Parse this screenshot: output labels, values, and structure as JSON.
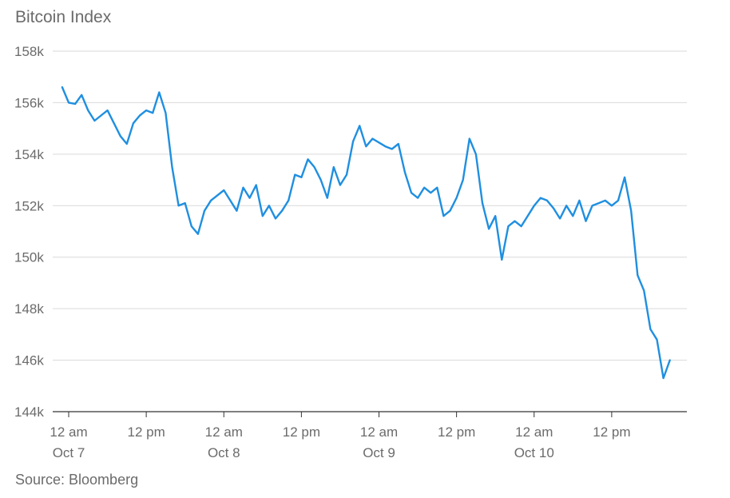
{
  "title": "Bitcoin Index",
  "source": "Source: Bloomberg",
  "colors": {
    "line": "#1f8fe0",
    "grid": "#d9d9d9",
    "axis": "#333333",
    "text": "#6b6b6b"
  },
  "chart_data": {
    "type": "line",
    "title": "Bitcoin Index",
    "xlabel": "",
    "ylabel": "",
    "ylim": [
      144000,
      158000
    ],
    "y_ticks": [
      {
        "value": 144000,
        "label": "144k"
      },
      {
        "value": 146000,
        "label": "146k"
      },
      {
        "value": 148000,
        "label": "148k"
      },
      {
        "value": 150000,
        "label": "150k"
      },
      {
        "value": 152000,
        "label": "152k"
      },
      {
        "value": 154000,
        "label": "154k"
      },
      {
        "value": 156000,
        "label": "156k"
      },
      {
        "value": 158000,
        "label": "158k"
      }
    ],
    "xlim": [
      "2025-10-07 00:00",
      "2025-10-11 00:00"
    ],
    "x_ticks": [
      {
        "value": "2025-10-07 00:00",
        "label": "12 am",
        "sublabel": "Oct 7"
      },
      {
        "value": "2025-10-07 12:00",
        "label": "12 pm",
        "sublabel": ""
      },
      {
        "value": "2025-10-08 00:00",
        "label": "12 am",
        "sublabel": "Oct 8"
      },
      {
        "value": "2025-10-08 12:00",
        "label": "12 pm",
        "sublabel": ""
      },
      {
        "value": "2025-10-09 00:00",
        "label": "12 am",
        "sublabel": "Oct 9"
      },
      {
        "value": "2025-10-09 12:00",
        "label": "12 pm",
        "sublabel": ""
      },
      {
        "value": "2025-10-10 00:00",
        "label": "12 am",
        "sublabel": "Oct 10"
      },
      {
        "value": "2025-10-10 12:00",
        "label": "12 pm",
        "sublabel": ""
      }
    ],
    "grid": true,
    "series": [
      {
        "values": [
          [
            "2025-10-06 23:00",
            156600
          ],
          [
            "2025-10-07 00:00",
            156000
          ],
          [
            "2025-10-07 01:00",
            155950
          ],
          [
            "2025-10-07 02:00",
            156300
          ],
          [
            "2025-10-07 03:00",
            155700
          ],
          [
            "2025-10-07 04:00",
            155300
          ],
          [
            "2025-10-07 05:00",
            155500
          ],
          [
            "2025-10-07 06:00",
            155700
          ],
          [
            "2025-10-07 07:00",
            155200
          ],
          [
            "2025-10-07 08:00",
            154700
          ],
          [
            "2025-10-07 09:00",
            154400
          ],
          [
            "2025-10-07 10:00",
            155200
          ],
          [
            "2025-10-07 11:00",
            155500
          ],
          [
            "2025-10-07 12:00",
            155700
          ],
          [
            "2025-10-07 13:00",
            155600
          ],
          [
            "2025-10-07 14:00",
            156400
          ],
          [
            "2025-10-07 15:00",
            155600
          ],
          [
            "2025-10-07 16:00",
            153500
          ],
          [
            "2025-10-07 17:00",
            152000
          ],
          [
            "2025-10-07 18:00",
            152100
          ],
          [
            "2025-10-07 19:00",
            151200
          ],
          [
            "2025-10-07 20:00",
            150900
          ],
          [
            "2025-10-07 21:00",
            151800
          ],
          [
            "2025-10-07 22:00",
            152200
          ],
          [
            "2025-10-08 00:00",
            152600
          ],
          [
            "2025-10-08 01:00",
            152200
          ],
          [
            "2025-10-08 02:00",
            151800
          ],
          [
            "2025-10-08 03:00",
            152700
          ],
          [
            "2025-10-08 04:00",
            152300
          ],
          [
            "2025-10-08 05:00",
            152800
          ],
          [
            "2025-10-08 06:00",
            151600
          ],
          [
            "2025-10-08 07:00",
            152000
          ],
          [
            "2025-10-08 08:00",
            151500
          ],
          [
            "2025-10-08 09:00",
            151800
          ],
          [
            "2025-10-08 10:00",
            152200
          ],
          [
            "2025-10-08 11:00",
            153200
          ],
          [
            "2025-10-08 12:00",
            153100
          ],
          [
            "2025-10-08 13:00",
            153800
          ],
          [
            "2025-10-08 14:00",
            153500
          ],
          [
            "2025-10-08 15:00",
            153000
          ],
          [
            "2025-10-08 16:00",
            152300
          ],
          [
            "2025-10-08 17:00",
            153500
          ],
          [
            "2025-10-08 18:00",
            152800
          ],
          [
            "2025-10-08 19:00",
            153200
          ],
          [
            "2025-10-08 20:00",
            154500
          ],
          [
            "2025-10-08 21:00",
            155100
          ],
          [
            "2025-10-08 22:00",
            154300
          ],
          [
            "2025-10-08 23:00",
            154600
          ],
          [
            "2025-10-09 01:00",
            154300
          ],
          [
            "2025-10-09 02:00",
            154200
          ],
          [
            "2025-10-09 03:00",
            154400
          ],
          [
            "2025-10-09 04:00",
            153300
          ],
          [
            "2025-10-09 05:00",
            152500
          ],
          [
            "2025-10-09 06:00",
            152300
          ],
          [
            "2025-10-09 07:00",
            152700
          ],
          [
            "2025-10-09 08:00",
            152500
          ],
          [
            "2025-10-09 09:00",
            152700
          ],
          [
            "2025-10-09 10:00",
            151600
          ],
          [
            "2025-10-09 11:00",
            151800
          ],
          [
            "2025-10-09 12:00",
            152300
          ],
          [
            "2025-10-09 13:00",
            153000
          ],
          [
            "2025-10-09 14:00",
            154600
          ],
          [
            "2025-10-09 15:00",
            154000
          ],
          [
            "2025-10-09 16:00",
            152100
          ],
          [
            "2025-10-09 17:00",
            151100
          ],
          [
            "2025-10-09 18:00",
            151600
          ],
          [
            "2025-10-09 19:00",
            149900
          ],
          [
            "2025-10-09 20:00",
            151200
          ],
          [
            "2025-10-09 21:00",
            151400
          ],
          [
            "2025-10-09 22:00",
            151200
          ],
          [
            "2025-10-10 00:00",
            152000
          ],
          [
            "2025-10-10 01:00",
            152300
          ],
          [
            "2025-10-10 02:00",
            152200
          ],
          [
            "2025-10-10 03:00",
            151900
          ],
          [
            "2025-10-10 04:00",
            151500
          ],
          [
            "2025-10-10 05:00",
            152000
          ],
          [
            "2025-10-10 06:00",
            151600
          ],
          [
            "2025-10-10 07:00",
            152200
          ],
          [
            "2025-10-10 08:00",
            151400
          ],
          [
            "2025-10-10 09:00",
            152000
          ],
          [
            "2025-10-10 10:00",
            152100
          ],
          [
            "2025-10-10 11:00",
            152200
          ],
          [
            "2025-10-10 12:00",
            152000
          ],
          [
            "2025-10-10 13:00",
            152200
          ],
          [
            "2025-10-10 14:00",
            153100
          ],
          [
            "2025-10-10 15:00",
            151800
          ],
          [
            "2025-10-10 16:00",
            149300
          ],
          [
            "2025-10-10 17:00",
            148700
          ],
          [
            "2025-10-10 18:00",
            147200
          ],
          [
            "2025-10-10 19:00",
            146800
          ],
          [
            "2025-10-10 20:00",
            145300
          ],
          [
            "2025-10-10 21:00",
            146000
          ]
        ]
      }
    ]
  }
}
